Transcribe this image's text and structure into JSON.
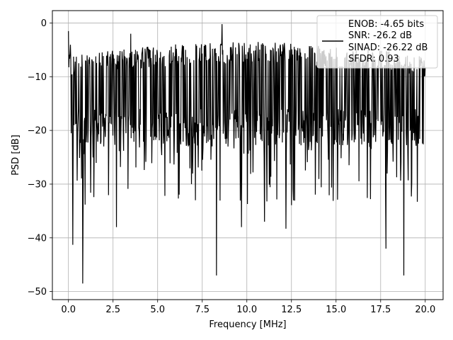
{
  "chart_data": {
    "type": "line",
    "title": "",
    "xlabel": "Frequency [MHz]",
    "ylabel": "PSD [dB]",
    "xlim": [
      -0.9,
      21.0
    ],
    "ylim": [
      -51.5,
      2.3
    ],
    "x_ticks": [
      0.0,
      2.5,
      5.0,
      7.5,
      10.0,
      12.5,
      15.0,
      17.5,
      20.0
    ],
    "x_tick_labels": [
      "0.0",
      "2.5",
      "5.0",
      "7.5",
      "10.0",
      "12.5",
      "15.0",
      "17.5",
      "20.0"
    ],
    "y_ticks": [
      0,
      -10,
      -20,
      -30,
      -40,
      -50
    ],
    "y_tick_labels": [
      "0",
      "−10",
      "−20",
      "−30",
      "−40",
      "−50"
    ],
    "grid": true,
    "legend_placement": "upper-right",
    "legend_lines": [
      "ENOB: -4.65 bits",
      "SNR: -26.2 dB",
      "SINAD: -26.22 dB",
      "SFDR: 0.93"
    ],
    "line_color": "#000000",
    "series": [
      {
        "name": "",
        "x_range": [
          0.0,
          20.0
        ],
        "num_points": 900,
        "noise_floor_db": -16,
        "noise_spread_db": 7,
        "y_max": -0.2,
        "y_min": -48.5,
        "peaks": [
          {
            "x": 0.0,
            "y": -1.5
          },
          {
            "x": 8.6,
            "y": -0.2
          },
          {
            "x": 3.5,
            "y": -2.0
          }
        ],
        "dips": [
          {
            "x": 0.25,
            "y": -41.3
          },
          {
            "x": 0.8,
            "y": -48.5
          },
          {
            "x": 2.7,
            "y": -38.0
          },
          {
            "x": 8.3,
            "y": -47.0
          },
          {
            "x": 9.7,
            "y": -38.0
          },
          {
            "x": 11.0,
            "y": -37.0
          },
          {
            "x": 12.2,
            "y": -38.3
          },
          {
            "x": 17.8,
            "y": -42.0
          },
          {
            "x": 18.8,
            "y": -47.0
          }
        ]
      }
    ]
  }
}
